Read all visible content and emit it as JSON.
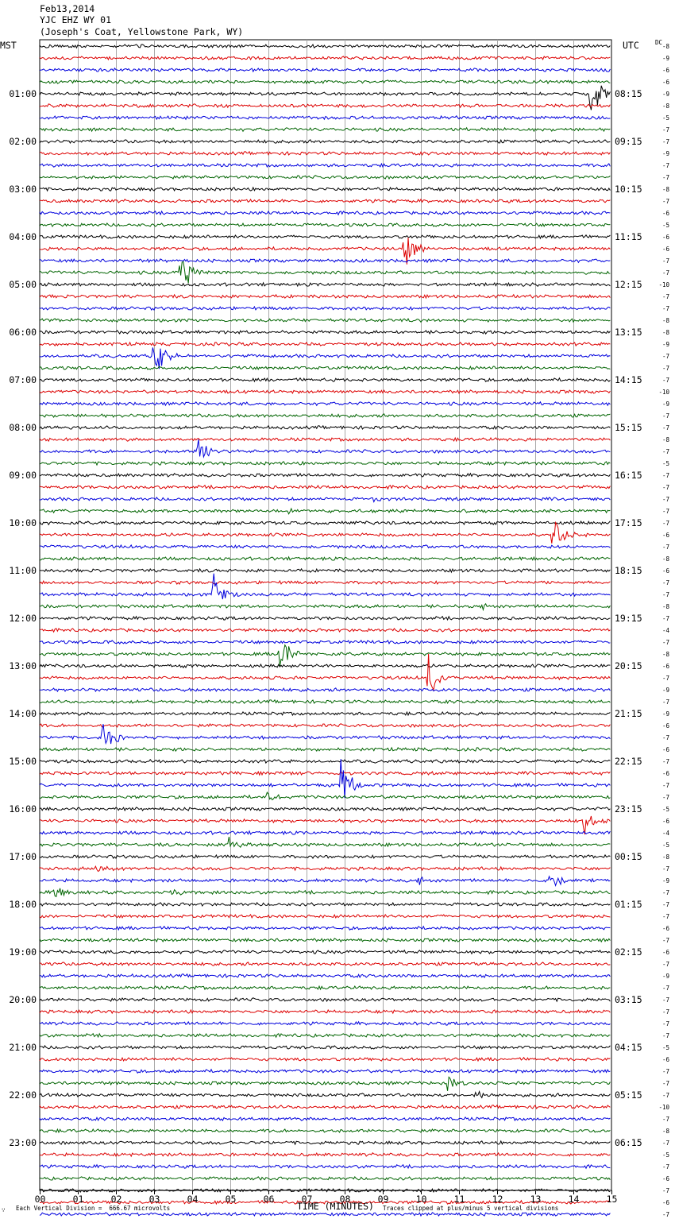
{
  "header": {
    "date": "Feb13,2014",
    "station": "YJC EHZ WY 01",
    "location": "(Joseph's Coat, Yellowstone Park, WY)"
  },
  "chart_data": {
    "type": "line",
    "title": "YJC EHZ WY 01",
    "left_axis_label": "MST",
    "right_axis_label": "UTC",
    "dc_label": "DC",
    "xlabel": "TIME (MINUTES)",
    "xlim": [
      0,
      15
    ],
    "x_ticks": [
      "00",
      "01",
      "02",
      "03",
      "04",
      "05",
      "06",
      "07",
      "08",
      "09",
      "10",
      "11",
      "12",
      "13",
      "14",
      "15"
    ],
    "mst_hours": [
      "01:00",
      "02:00",
      "03:00",
      "04:00",
      "05:00",
      "06:00",
      "07:00",
      "08:00",
      "09:00",
      "10:00",
      "11:00",
      "12:00",
      "13:00",
      "14:00",
      "15:00",
      "16:00",
      "17:00",
      "18:00",
      "19:00",
      "20:00",
      "21:00",
      "22:00",
      "23:00"
    ],
    "utc_hours": [
      "08:15",
      "09:15",
      "10:15",
      "11:15",
      "12:15",
      "13:15",
      "14:15",
      "15:15",
      "16:15",
      "17:15",
      "18:15",
      "19:15",
      "20:15",
      "21:15",
      "22:15",
      "23:15",
      "00:15",
      "01:15",
      "02:15",
      "03:15",
      "04:15",
      "05:15",
      "06:15"
    ],
    "trace_colors": [
      "#000000",
      "#dd0000",
      "#0000dd",
      "#006400"
    ],
    "dc_offsets": [
      "-8",
      "-9",
      "-6",
      "-6",
      "-9",
      "-8",
      "-5",
      "-7",
      "-7",
      "-9",
      "-7",
      "-7",
      "-8",
      "-7",
      "-6",
      "-5",
      "-6",
      "-6",
      "-7",
      "-7",
      "-10",
      "-7",
      "-7",
      "-8",
      "-8",
      "-9",
      "-7",
      "-7",
      "-7",
      "-10",
      "-9",
      "-7",
      "-7",
      "-8",
      "-7",
      "-5",
      "-7",
      "-7",
      "-7",
      "-7",
      "-7",
      "-6",
      "-7",
      "-8",
      "-6",
      "-7",
      "-7",
      "-8",
      "-7",
      "-4",
      "-7",
      "-8",
      "-6",
      "-7",
      "-9",
      "-7",
      "-9",
      "-6",
      "-7",
      "-6",
      "-7",
      "-6",
      "-7",
      "-7",
      "-5",
      "-6",
      "-4",
      "-5",
      "-8",
      "-7",
      "-9",
      "-7",
      "-7",
      "-7",
      "-6",
      "-7",
      "-6",
      "-7",
      "-9",
      "-7",
      "-7",
      "-7",
      "-7",
      "-7",
      "-5",
      "-6",
      "-7",
      "-7",
      "-7",
      "-10",
      "-7",
      "-8",
      "-7",
      "-5",
      "-7",
      "-6",
      "-7",
      "-6",
      "-7",
      "-8"
    ],
    "events": [
      {
        "trace": 4,
        "minute": 14.45,
        "amp": 34
      },
      {
        "trace": 17,
        "minute": 9.55,
        "amp": 30
      },
      {
        "trace": 19,
        "minute": 3.7,
        "amp": 34
      },
      {
        "trace": 26,
        "minute": 3.0,
        "amp": 32
      },
      {
        "trace": 34,
        "minute": 4.15,
        "amp": 22
      },
      {
        "trace": 38,
        "minute": 8.6,
        "amp": 5
      },
      {
        "trace": 39,
        "minute": 6.45,
        "amp": 7
      },
      {
        "trace": 41,
        "minute": 13.45,
        "amp": 30
      },
      {
        "trace": 46,
        "minute": 4.55,
        "amp": 30
      },
      {
        "trace": 47,
        "minute": 11.5,
        "amp": 6
      },
      {
        "trace": 51,
        "minute": 6.3,
        "amp": 32
      },
      {
        "trace": 53,
        "minute": 10.2,
        "amp": 30
      },
      {
        "trace": 58,
        "minute": 1.65,
        "amp": 34
      },
      {
        "trace": 62,
        "minute": 7.9,
        "amp": 40
      },
      {
        "trace": 63,
        "minute": 5.95,
        "amp": 8
      },
      {
        "trace": 65,
        "minute": 14.25,
        "amp": 20
      },
      {
        "trace": 67,
        "minute": 4.95,
        "amp": 12
      },
      {
        "trace": 69,
        "minute": 1.5,
        "amp": 6
      },
      {
        "trace": 70,
        "minute": 13.35,
        "amp": 18
      },
      {
        "trace": 70,
        "minute": 9.85,
        "amp": 8
      },
      {
        "trace": 71,
        "minute": 0.4,
        "amp": 10
      },
      {
        "trace": 71,
        "minute": 3.5,
        "amp": 5
      },
      {
        "trace": 87,
        "minute": 10.7,
        "amp": 10
      },
      {
        "trace": 88,
        "minute": 11.4,
        "amp": 8
      }
    ]
  },
  "footer": {
    "icon_glyph": "∵",
    "vertical_division": "Each Vertical Division =  666.67 microvolts",
    "clip_note": "Traces clipped at plus/minus 5 vertical divisions"
  }
}
